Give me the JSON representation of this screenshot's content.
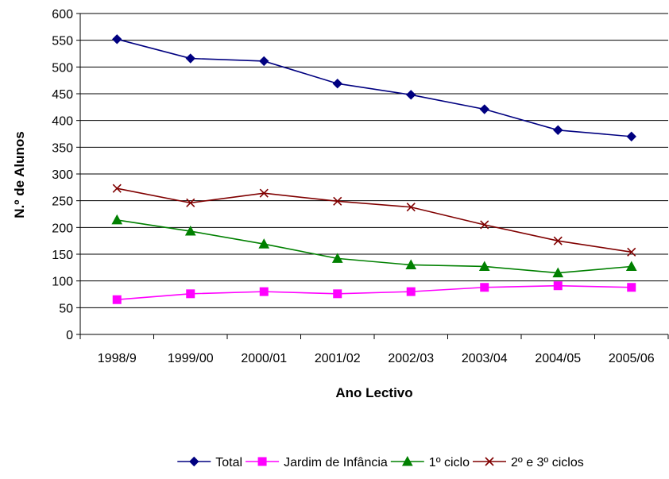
{
  "chart_data": {
    "type": "line",
    "xlabel": "Ano Lectivo",
    "ylabel": "N.º de Alunos",
    "categories": [
      "1998/9",
      "1999/00",
      "2000/01",
      "2001/02",
      "2002/03",
      "2003/04",
      "2004/05",
      "2005/06"
    ],
    "ylim": [
      0,
      600
    ],
    "yticks": [
      0,
      50,
      100,
      150,
      200,
      250,
      300,
      350,
      400,
      450,
      500,
      550,
      600
    ],
    "grid": true,
    "legend_position": "bottom",
    "series": [
      {
        "name": "Total",
        "color": "#000080",
        "marker": "diamond",
        "values": [
          552,
          516,
          511,
          469,
          448,
          421,
          382,
          370
        ]
      },
      {
        "name": "Jardim de Infância",
        "color": "#FF00FF",
        "marker": "square",
        "values": [
          65,
          76,
          80,
          76,
          80,
          88,
          91,
          88
        ]
      },
      {
        "name": "1º ciclo",
        "color": "#008000",
        "marker": "triangle",
        "values": [
          214,
          193,
          169,
          142,
          130,
          127,
          115,
          127
        ]
      },
      {
        "name": "2º e 3º ciclos",
        "color": "#800000",
        "marker": "x",
        "values": [
          273,
          246,
          264,
          249,
          238,
          205,
          175,
          154
        ]
      }
    ]
  }
}
